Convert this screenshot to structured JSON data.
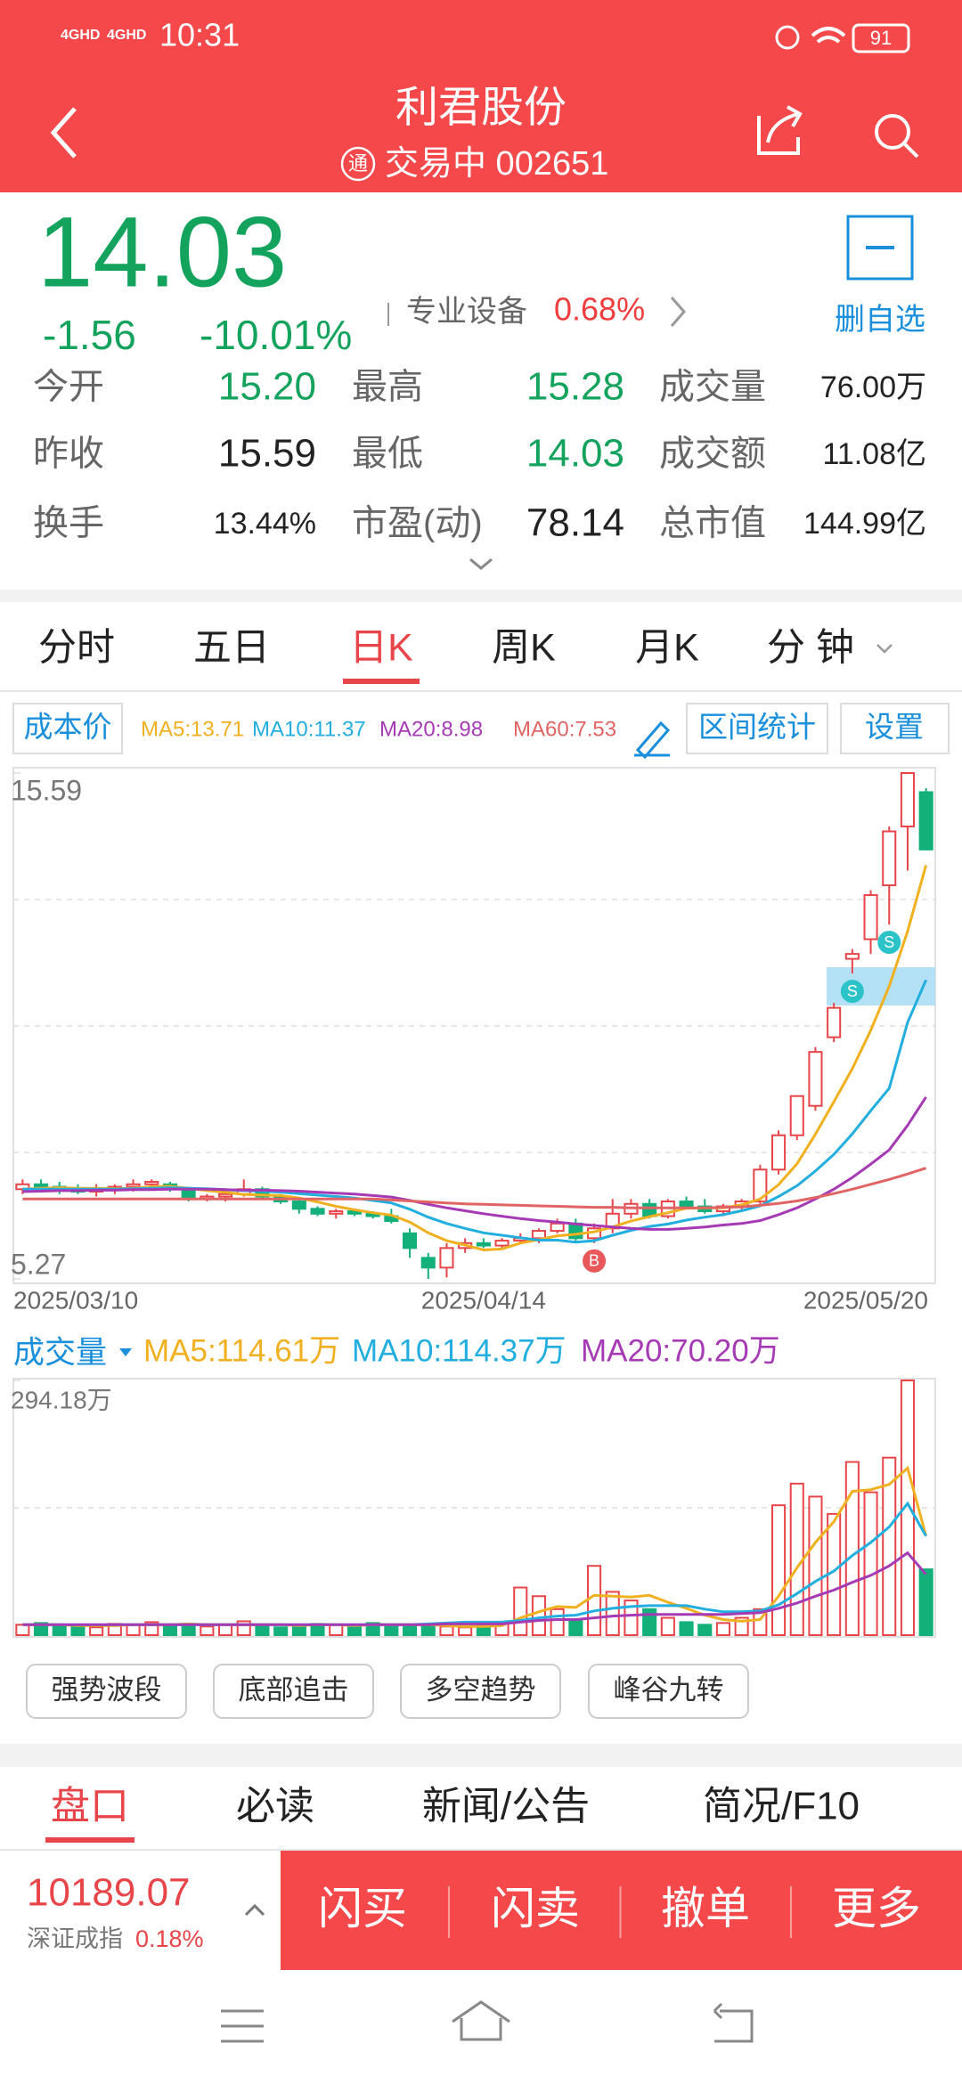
{
  "status_bar": {
    "time": "10:31",
    "network": [
      "4GHD",
      "4GHD"
    ],
    "battery": "91"
  },
  "header": {
    "title": "利君股份",
    "badge": "通",
    "subtitle": "交易中 002651"
  },
  "quote": {
    "price": "14.03",
    "change": "-1.56",
    "change_pct": "-10.01%",
    "sector": "专业设备",
    "sector_pct": "0.68%",
    "watch_button": "删自选",
    "stats": [
      [
        "今开",
        "15.20",
        "最高",
        "15.28",
        "成交量",
        "76.00万"
      ],
      [
        "昨收",
        "15.59",
        "最低",
        "14.03",
        "成交额",
        "11.08亿"
      ],
      [
        "换手",
        "13.44%",
        "市盈(动)",
        "78.14",
        "总市值",
        "144.99亿"
      ]
    ]
  },
  "tabs": {
    "items": [
      "分时",
      "五日",
      "日K",
      "周K",
      "月K",
      "分 钟"
    ],
    "active": 2
  },
  "toolbar": {
    "cost": "成本价",
    "range_stats": "区间统计",
    "settings": "设置"
  },
  "chart_data": [
    {
      "type": "candlestick",
      "categories": [
        "2025/03/10",
        null,
        null,
        null,
        null,
        null,
        null,
        null,
        null,
        null,
        null,
        null,
        null,
        null,
        null,
        null,
        null,
        null,
        null,
        null,
        null,
        null,
        null,
        null,
        null,
        "2025/04/14",
        null,
        null,
        null,
        null,
        null,
        null,
        null,
        null,
        null,
        null,
        null,
        null,
        null,
        null,
        null,
        null,
        null,
        null,
        null,
        null,
        null,
        null,
        null,
        "2025/05/20"
      ],
      "candles": [
        [
          7.1,
          7.3,
          7.0,
          7.2
        ],
        [
          7.2,
          7.3,
          7.1,
          7.15
        ],
        [
          7.15,
          7.25,
          7.0,
          7.1
        ],
        [
          7.1,
          7.2,
          7.0,
          7.05
        ],
        [
          7.05,
          7.2,
          6.95,
          7.1
        ],
        [
          7.1,
          7.2,
          7.0,
          7.15
        ],
        [
          7.15,
          7.3,
          7.05,
          7.2
        ],
        [
          7.2,
          7.3,
          7.1,
          7.25
        ],
        [
          7.2,
          7.25,
          7.05,
          7.1
        ],
        [
          7.1,
          7.15,
          6.85,
          6.9
        ],
        [
          6.9,
          7.0,
          6.85,
          6.95
        ],
        [
          6.95,
          7.1,
          6.85,
          7.0
        ],
        [
          7.0,
          7.3,
          6.95,
          7.1
        ],
        [
          7.1,
          7.15,
          6.9,
          6.95
        ],
        [
          6.95,
          7.0,
          6.8,
          6.85
        ],
        [
          6.85,
          6.9,
          6.6,
          6.7
        ],
        [
          6.7,
          6.75,
          6.55,
          6.6
        ],
        [
          6.6,
          6.7,
          6.5,
          6.65
        ],
        [
          6.65,
          6.7,
          6.55,
          6.6
        ],
        [
          6.6,
          6.65,
          6.5,
          6.55
        ],
        [
          6.55,
          6.7,
          6.4,
          6.45
        ],
        [
          6.2,
          6.3,
          5.7,
          5.9
        ],
        [
          5.7,
          5.8,
          5.27,
          5.5
        ],
        [
          5.5,
          6.0,
          5.3,
          5.9
        ],
        [
          5.9,
          6.1,
          5.8,
          6.0
        ],
        [
          6.0,
          6.1,
          5.9,
          5.95
        ],
        [
          5.95,
          6.1,
          5.9,
          6.05
        ],
        [
          6.05,
          6.2,
          6.0,
          6.1
        ],
        [
          6.1,
          6.3,
          6.0,
          6.25
        ],
        [
          6.25,
          6.5,
          6.2,
          6.4
        ],
        [
          6.4,
          6.5,
          6.0,
          6.1
        ],
        [
          6.1,
          6.4,
          6.0,
          6.3
        ],
        [
          6.3,
          6.9,
          6.2,
          6.6
        ],
        [
          6.6,
          6.9,
          6.5,
          6.8
        ],
        [
          6.8,
          6.9,
          6.5,
          6.55
        ],
        [
          6.55,
          6.9,
          6.5,
          6.85
        ],
        [
          6.85,
          6.95,
          6.7,
          6.75
        ],
        [
          6.75,
          6.9,
          6.6,
          6.65
        ],
        [
          6.65,
          6.8,
          6.55,
          6.75
        ],
        [
          6.75,
          6.9,
          6.65,
          6.85
        ],
        [
          6.85,
          7.6,
          6.8,
          7.5
        ],
        [
          7.5,
          8.3,
          7.4,
          8.2
        ],
        [
          8.2,
          9.0,
          8.1,
          9.0
        ],
        [
          8.8,
          10.0,
          8.7,
          9.9
        ],
        [
          10.2,
          10.9,
          10.1,
          10.8
        ],
        [
          11.8,
          12.0,
          11.5,
          11.9
        ],
        [
          12.2,
          13.2,
          11.9,
          13.1
        ],
        [
          13.3,
          14.5,
          12.5,
          14.4
        ],
        [
          14.5,
          15.59,
          13.6,
          15.59
        ],
        [
          15.2,
          15.28,
          14.03,
          14.03
        ]
      ],
      "up_color": "#e8454a",
      "down_color": "#13b07a",
      "series": [
        {
          "name": "MA5:13.71",
          "color": "#f0b020",
          "values": [
            7.1,
            7.12,
            7.13,
            7.12,
            7.12,
            7.11,
            7.12,
            7.15,
            7.16,
            7.12,
            7.07,
            7.04,
            6.99,
            6.98,
            6.97,
            6.92,
            6.84,
            6.75,
            6.68,
            6.62,
            6.57,
            6.43,
            6.21,
            6.05,
            5.96,
            5.86,
            5.88,
            6.0,
            6.07,
            6.15,
            6.18,
            6.23,
            6.33,
            6.45,
            6.54,
            6.62,
            6.71,
            6.72,
            6.72,
            6.78,
            6.9,
            7.19,
            7.62,
            8.22,
            8.88,
            9.56,
            10.34,
            11.24,
            12.36,
            13.71
          ]
        },
        {
          "name": "MA10:11.37",
          "color": "#22aede",
          "values": [
            7.1,
            7.1,
            7.1,
            7.1,
            7.1,
            7.1,
            7.11,
            7.12,
            7.13,
            7.12,
            7.11,
            7.09,
            7.07,
            7.06,
            7.04,
            7.01,
            6.98,
            6.95,
            6.92,
            6.87,
            6.82,
            6.69,
            6.53,
            6.4,
            6.3,
            6.21,
            6.16,
            6.11,
            6.06,
            6.06,
            6.02,
            6.05,
            6.16,
            6.26,
            6.34,
            6.39,
            6.47,
            6.53,
            6.58,
            6.66,
            6.76,
            6.95,
            7.17,
            7.47,
            7.81,
            8.23,
            8.7,
            9.16,
            10.5,
            11.37
          ]
        },
        {
          "name": "MA20:8.98",
          "color": "#a63ab5",
          "values": [
            7.05,
            7.06,
            7.07,
            7.07,
            7.08,
            7.08,
            7.09,
            7.09,
            7.1,
            7.1,
            7.1,
            7.09,
            7.08,
            7.08,
            7.07,
            7.06,
            7.04,
            7.02,
            7.0,
            6.97,
            6.94,
            6.87,
            6.79,
            6.72,
            6.66,
            6.6,
            6.55,
            6.5,
            6.46,
            6.43,
            6.39,
            6.36,
            6.33,
            6.3,
            6.28,
            6.28,
            6.3,
            6.33,
            6.37,
            6.4,
            6.46,
            6.58,
            6.72,
            6.9,
            7.1,
            7.34,
            7.61,
            7.9,
            8.4,
            8.98
          ]
        },
        {
          "name": "MA60:7.53",
          "color": "#e06464",
          "values": [
            6.9,
            6.9,
            6.9,
            6.9,
            6.9,
            6.9,
            6.9,
            6.9,
            6.9,
            6.9,
            6.9,
            6.9,
            6.9,
            6.9,
            6.9,
            6.9,
            6.9,
            6.9,
            6.9,
            6.9,
            6.88,
            6.86,
            6.84,
            6.82,
            6.8,
            6.79,
            6.78,
            6.77,
            6.76,
            6.75,
            6.74,
            6.73,
            6.73,
            6.72,
            6.72,
            6.72,
            6.72,
            6.72,
            6.73,
            6.74,
            6.77,
            6.81,
            6.86,
            6.93,
            7.01,
            7.1,
            7.2,
            7.3,
            7.41,
            7.53
          ]
        }
      ],
      "ylim": [
        5.27,
        15.59
      ],
      "yticks": [
        5.27,
        15.59
      ],
      "grid_divisions": 4,
      "annotations": [
        {
          "text": "B",
          "x": 31,
          "color": "#e8585a"
        },
        {
          "text": "S",
          "x": 45,
          "color": "#2cc3c8"
        },
        {
          "text": "S",
          "x": 47,
          "color": "#2cc3c8"
        }
      ]
    },
    {
      "type": "bar",
      "title": "成交量",
      "values": [
        12,
        14,
        10,
        11,
        9,
        13,
        12,
        15,
        11,
        13,
        10,
        12,
        16,
        11,
        9,
        10,
        13,
        12,
        11,
        14,
        12,
        10,
        11,
        10,
        9,
        12,
        14,
        55,
        45,
        30,
        18,
        80,
        50,
        40,
        30,
        20,
        15,
        12,
        14,
        20,
        30,
        150,
        175,
        160,
        140,
        200,
        165,
        205,
        294.18,
        76
      ],
      "series": [
        {
          "name": "MA5:114.61万",
          "color": "#f0b020",
          "values": [
            12,
            12,
            12,
            11,
            11,
            11,
            12,
            12,
            12,
            13,
            12,
            12,
            12,
            12,
            12,
            11,
            12,
            12,
            11,
            12,
            12,
            12,
            12,
            11,
            10,
            10,
            11,
            20,
            27,
            33,
            32,
            46,
            45,
            44,
            46,
            38,
            31,
            23,
            18,
            16,
            18,
            45,
            78,
            107,
            131,
            166,
            168,
            174,
            193,
            114.61
          ]
        },
        {
          "name": "MA10:114.37万",
          "color": "#22aede",
          "values": [
            12,
            12,
            12,
            12,
            12,
            12,
            12,
            12,
            12,
            12,
            12,
            12,
            12,
            12,
            12,
            12,
            12,
            12,
            12,
            12,
            12,
            12,
            13,
            14,
            15,
            15,
            15,
            17,
            20,
            22,
            23,
            28,
            31,
            33,
            34,
            34,
            34,
            30,
            27,
            27,
            28,
            35,
            48,
            62,
            74,
            92,
            107,
            125,
            152,
            114.37
          ]
        },
        {
          "name": "MA20:70.20万",
          "color": "#a63ab5",
          "values": [
            12,
            12,
            12,
            12,
            12,
            12,
            12,
            12,
            12,
            12,
            12,
            12,
            12,
            12,
            12,
            12,
            12,
            12,
            12,
            12,
            12,
            12,
            12,
            13,
            13,
            13,
            13,
            15,
            17,
            18,
            18,
            20,
            22,
            23,
            24,
            24,
            24,
            24,
            24,
            25,
            26,
            31,
            37,
            45,
            52,
            61,
            69,
            80,
            95,
            70.2
          ]
        }
      ],
      "ylim": [
        0,
        294.18
      ],
      "yticks": [
        {
          "value": 294.18,
          "label": "294.18万"
        }
      ],
      "grid_divisions": 2
    }
  ],
  "strategy_buttons": [
    "强势波段",
    "底部追击",
    "多空趋势",
    "峰谷九转"
  ],
  "bottom_tabs": {
    "items": [
      "盘口",
      "必读",
      "新闻/公告",
      "简况/F10"
    ],
    "active": 0
  },
  "index_ticker": {
    "value": "10189.07",
    "name": "深证成指",
    "pct": "0.18%"
  },
  "actions": [
    "闪买",
    "闪卖",
    "撤单",
    "更多"
  ]
}
